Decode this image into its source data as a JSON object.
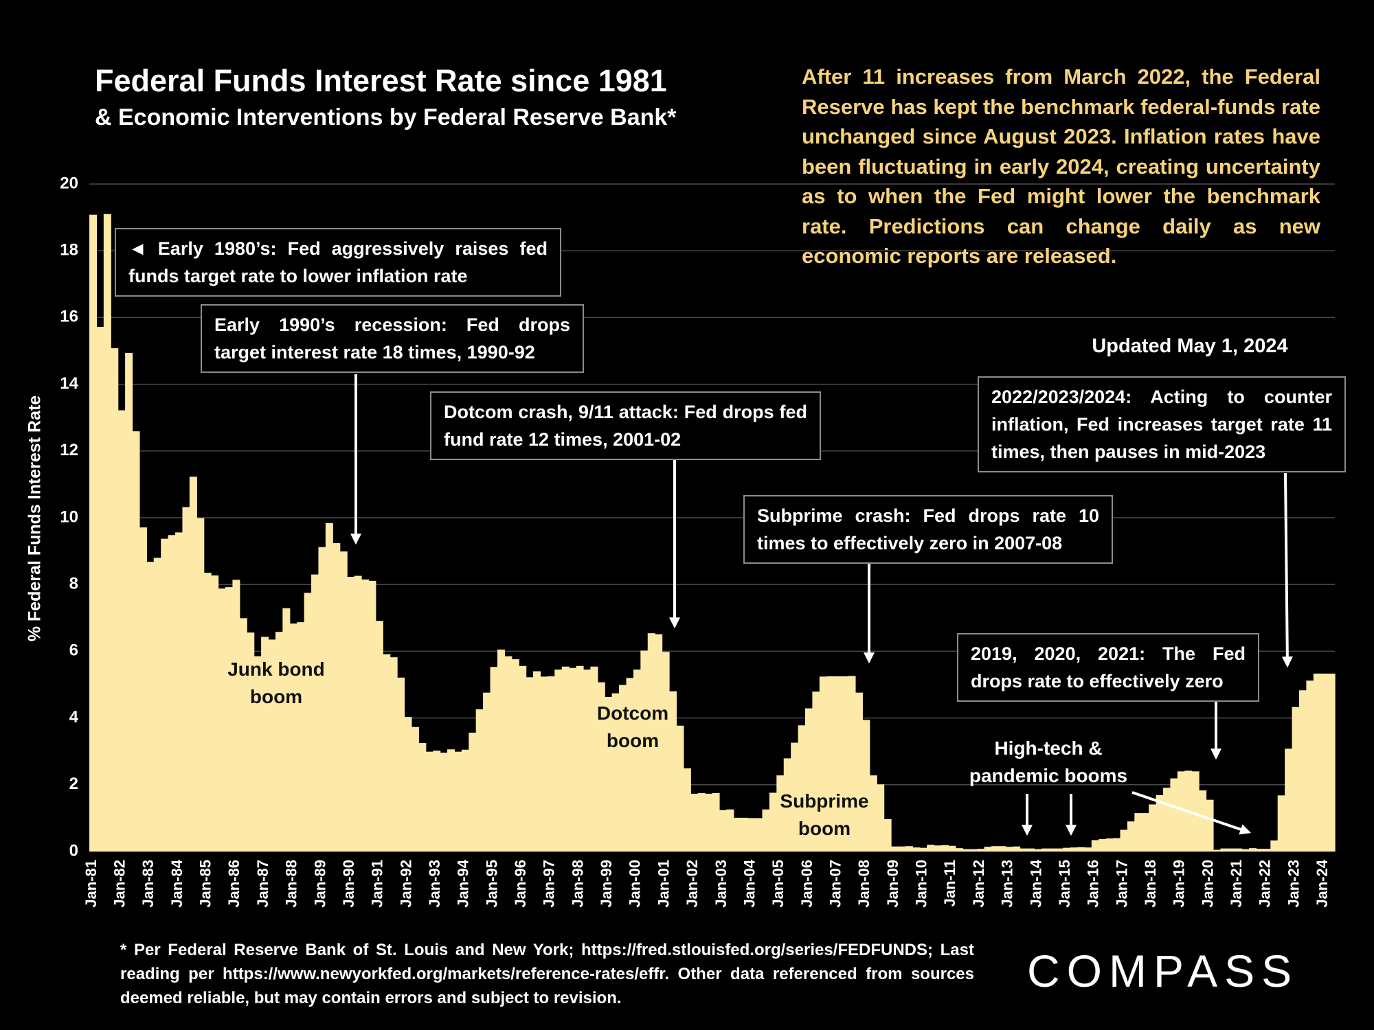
{
  "chart_data": {
    "type": "bar",
    "title": "Federal Funds Interest Rate since 1981",
    "subtitle": "& Economic Interventions by Federal Reserve Bank*",
    "y_label": "% Federal Funds Interest Rate",
    "note": "After 11 increases from March 2022, the Federal Reserve has kept the benchmark federal-funds rate unchanged since August 2023. Inflation rates have been fluctuating in early 2024, creating uncertainty as to when the Fed might lower the benchmark rate.  Predictions can change daily as new economic reports are released.",
    "updated": "Updated May 1, 2024",
    "annotations": [
      "◄ Early 1980’s: Fed aggressively raises fed funds target rate to lower inflation rate",
      "Early 1990’s recession: Fed drops target interest rate 18 times, 1990-92",
      "Dotcom crash, 9/11 attack: Fed drops fed fund rate 12 times, 2001-02",
      "Subprime crash: Fed drops rate 10 times to effectively zero in 2007-08",
      "2022/2023/2024: Acting to counter inflation, Fed increases target rate 11 times, then pauses in mid-2023",
      "2019, 2020, 2021: The Fed drops rate to effectively zero"
    ],
    "boom_labels": [
      "Junk bond boom",
      "Dotcom boom",
      "Subprime boom",
      "High-tech & pandemic booms"
    ],
    "footnote": "* Per Federal Reserve Bank of St. Louis and New York; https://fred.stlouisfed.org/series/FEDFUNDS; Last reading per https://www.newyorkfed.org/markets/reference-rates/effr. Other data referenced from sources deemed reliable, but may contain errors and subject to revision.",
    "logo": "COMPASS",
    "color": "#fde9a8",
    "ylim": [
      0,
      20
    ],
    "yticks": [
      0,
      2,
      4,
      6,
      8,
      10,
      12,
      14,
      16,
      18,
      20
    ],
    "grid": true,
    "categories": [
      "Jan-81",
      null,
      null,
      null,
      "Jan-82",
      null,
      null,
      null,
      "Jan-83",
      null,
      null,
      null,
      "Jan-84",
      null,
      null,
      null,
      "Jan-85",
      null,
      null,
      null,
      "Jan-86",
      null,
      null,
      null,
      "Jan-87",
      null,
      null,
      null,
      "Jan-88",
      null,
      null,
      null,
      "Jan-89",
      null,
      null,
      null,
      "Jan-90",
      null,
      null,
      null,
      "Jan-91",
      null,
      null,
      null,
      "Jan-92",
      null,
      null,
      null,
      "Jan-93",
      null,
      null,
      null,
      "Jan-94",
      null,
      null,
      null,
      "Jan-95",
      null,
      null,
      null,
      "Jan-96",
      null,
      null,
      null,
      "Jan-97",
      null,
      null,
      null,
      "Jan-98",
      null,
      null,
      null,
      "Jan-99",
      null,
      null,
      null,
      "Jan-00",
      null,
      null,
      null,
      "Jan-01",
      null,
      null,
      null,
      "Jan-02",
      null,
      null,
      null,
      "Jan-03",
      null,
      null,
      null,
      "Jan-04",
      null,
      null,
      null,
      "Jan-05",
      null,
      null,
      null,
      "Jan-06",
      null,
      null,
      null,
      "Jan-07",
      null,
      null,
      null,
      "Jan-08",
      null,
      null,
      null,
      "Jan-09",
      null,
      null,
      null,
      "Jan-10",
      null,
      null,
      null,
      "Jan-11",
      null,
      null,
      null,
      "Jan-12",
      null,
      null,
      null,
      "Jan-13",
      null,
      null,
      null,
      "Jan-14",
      null,
      null,
      null,
      "Jan-15",
      null,
      null,
      null,
      "Jan-16",
      null,
      null,
      null,
      "Jan-17",
      null,
      null,
      null,
      "Jan-18",
      null,
      null,
      null,
      "Jan-19",
      null,
      null,
      null,
      "Jan-20",
      null,
      null,
      null,
      "Jan-21",
      null,
      null,
      null,
      "Jan-22",
      null,
      null,
      null,
      "Jan-23",
      null,
      null,
      null,
      "Jan-24",
      null
    ],
    "values": [
      19.08,
      15.72,
      19.1,
      15.08,
      13.22,
      14.94,
      12.59,
      9.71,
      8.68,
      8.8,
      9.37,
      9.48,
      9.56,
      10.32,
      11.23,
      9.99,
      8.35,
      8.27,
      7.88,
      7.92,
      8.14,
      6.99,
      6.56,
      5.85,
      6.43,
      6.35,
      6.58,
      7.29,
      6.83,
      6.87,
      7.75,
      8.3,
      9.12,
      9.84,
      9.24,
      8.99,
      8.23,
      8.26,
      8.15,
      8.11,
      6.91,
      5.91,
      5.82,
      5.21,
      4.03,
      3.73,
      3.25,
      2.99,
      3.02,
      2.96,
      3.06,
      2.99,
      3.05,
      3.56,
      4.26,
      4.76,
      5.53,
      6.05,
      5.85,
      5.76,
      5.56,
      5.22,
      5.4,
      5.24,
      5.25,
      5.45,
      5.54,
      5.5,
      5.56,
      5.45,
      5.54,
      5.07,
      4.63,
      4.74,
      4.99,
      5.2,
      5.45,
      6.02,
      6.54,
      6.51,
      5.98,
      4.8,
      3.77,
      2.49,
      1.73,
      1.75,
      1.73,
      1.75,
      1.24,
      1.26,
      1.01,
      1.01,
      1.0,
      1.0,
      1.26,
      1.76,
      2.28,
      2.79,
      3.26,
      3.78,
      4.29,
      4.79,
      5.24,
      5.25,
      5.25,
      5.25,
      5.26,
      4.76,
      3.94,
      2.28,
      2.01,
      0.97,
      0.15,
      0.15,
      0.16,
      0.12,
      0.11,
      0.2,
      0.18,
      0.19,
      0.17,
      0.1,
      0.07,
      0.07,
      0.08,
      0.14,
      0.16,
      0.16,
      0.14,
      0.15,
      0.09,
      0.09,
      0.07,
      0.09,
      0.09,
      0.09,
      0.11,
      0.12,
      0.13,
      0.12,
      0.34,
      0.37,
      0.39,
      0.4,
      0.65,
      0.9,
      1.15,
      1.15,
      1.41,
      1.69,
      1.91,
      2.19,
      2.4,
      2.42,
      2.4,
      1.83,
      1.55,
      0.05,
      0.09,
      0.09,
      0.09,
      0.07,
      0.1,
      0.08,
      0.08,
      0.33,
      1.68,
      3.08,
      4.33,
      4.83,
      5.12,
      5.33,
      5.33,
      5.33
    ]
  }
}
